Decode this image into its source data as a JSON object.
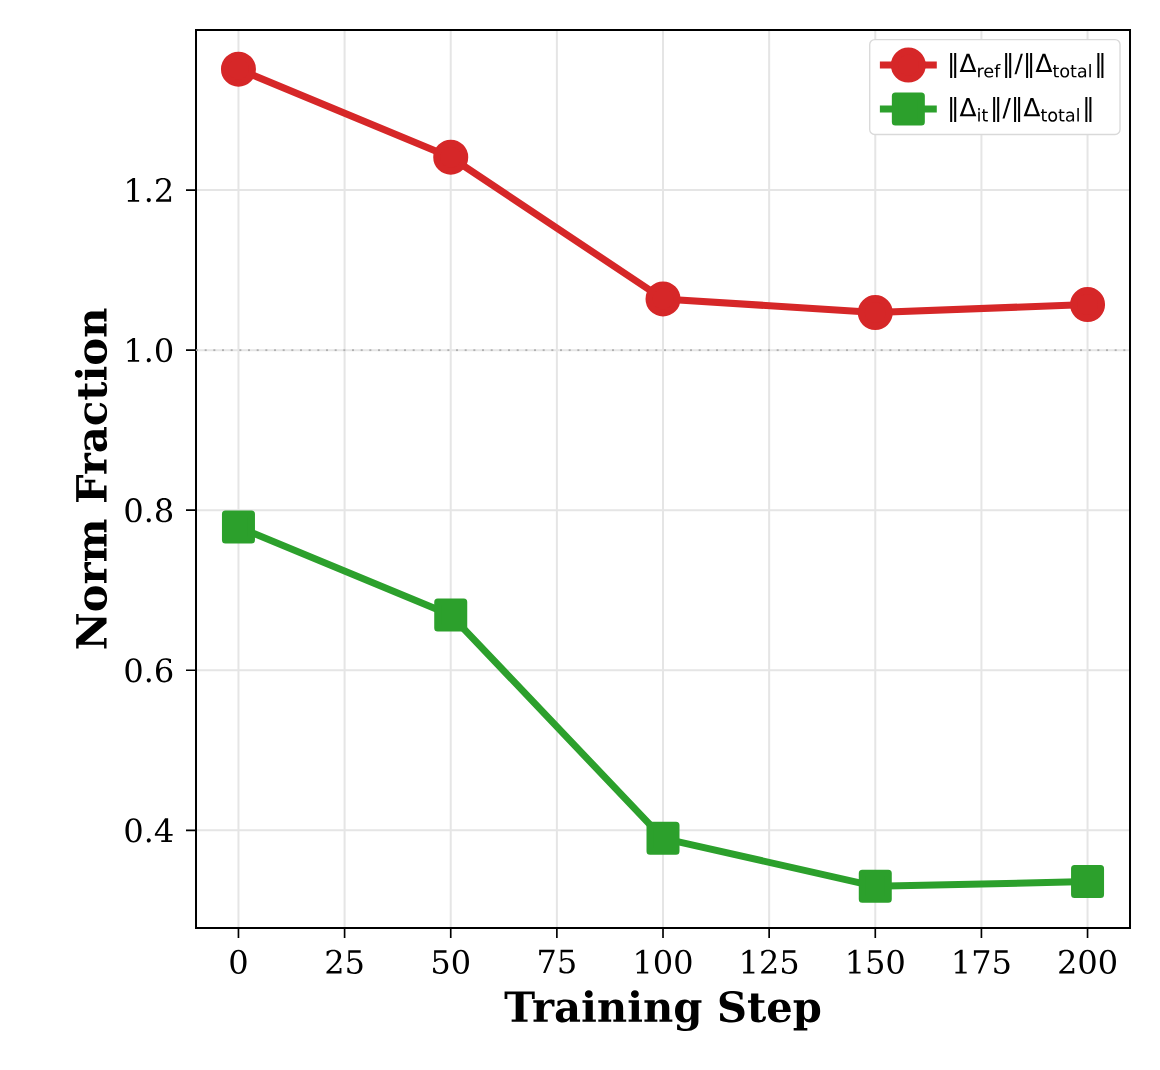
{
  "chart_data": {
    "type": "line",
    "xlabel": "Training Step",
    "ylabel": "Norm Fraction",
    "x": [
      0,
      50,
      100,
      150,
      200
    ],
    "series": [
      {
        "name": "‖Δ$_{ref}$‖/‖Δ$_{total}$‖",
        "color": "#d62728",
        "marker": "circle",
        "values": [
          1.351,
          1.241,
          1.064,
          1.047,
          1.057
        ]
      },
      {
        "name": "‖Δ$_{it}$‖/‖Δ$_{total}$‖",
        "color": "#2ca02c",
        "marker": "square",
        "values": [
          0.779,
          0.669,
          0.39,
          0.33,
          0.336
        ]
      }
    ],
    "xlim": [
      -10,
      210
    ],
    "ylim": [
      0.278,
      1.4
    ],
    "xticks": [
      0,
      25,
      50,
      75,
      100,
      125,
      150,
      175,
      200
    ],
    "yticks": [
      0.4,
      0.6,
      0.8,
      {
        "value": 1,
        "label": "1.0"
      },
      1.2
    ],
    "ref_lines": [
      {
        "axis": "y",
        "value": 1.0,
        "color": "#b0b0b0",
        "line_style": "dotted"
      }
    ],
    "grid": true,
    "legend": "top right",
    "line_style": "solid"
  }
}
